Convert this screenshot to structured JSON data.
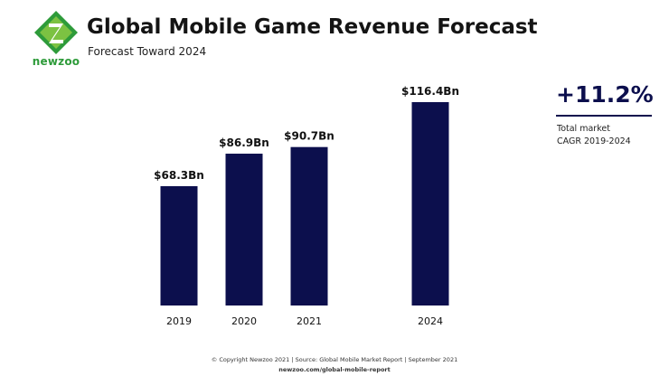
{
  "brand": {
    "logo_text": "newzoo",
    "logo_color": "#2e9b3a"
  },
  "header": {
    "title": "Global Mobile Game Revenue Forecast",
    "subtitle": "Forecast Toward 2024"
  },
  "callout": {
    "value": "+11.2%",
    "line1": "Total market",
    "line2": "CAGR 2019-2024"
  },
  "footer": {
    "line1": "© Copyright Newzoo 2021 | Source: Global Mobile Market Report | September 2021",
    "line2": "newzoo.com/global-mobile-report"
  },
  "chart_data": {
    "type": "bar",
    "categories": [
      "2019",
      "2020",
      "2021",
      "2024"
    ],
    "values": [
      68.3,
      86.9,
      90.7,
      116.4
    ],
    "data_labels": [
      "$68.3Bn",
      "$86.9Bn",
      "$90.7Bn",
      "$116.4Bn"
    ],
    "title": "Global Mobile Game Revenue Forecast",
    "subtitle": "Forecast Toward 2024",
    "xlabel": "",
    "ylabel": "",
    "unit": "Bn",
    "ylim": [
      0,
      116.4
    ],
    "grid": false,
    "bar_color": "#0c0f4d"
  }
}
